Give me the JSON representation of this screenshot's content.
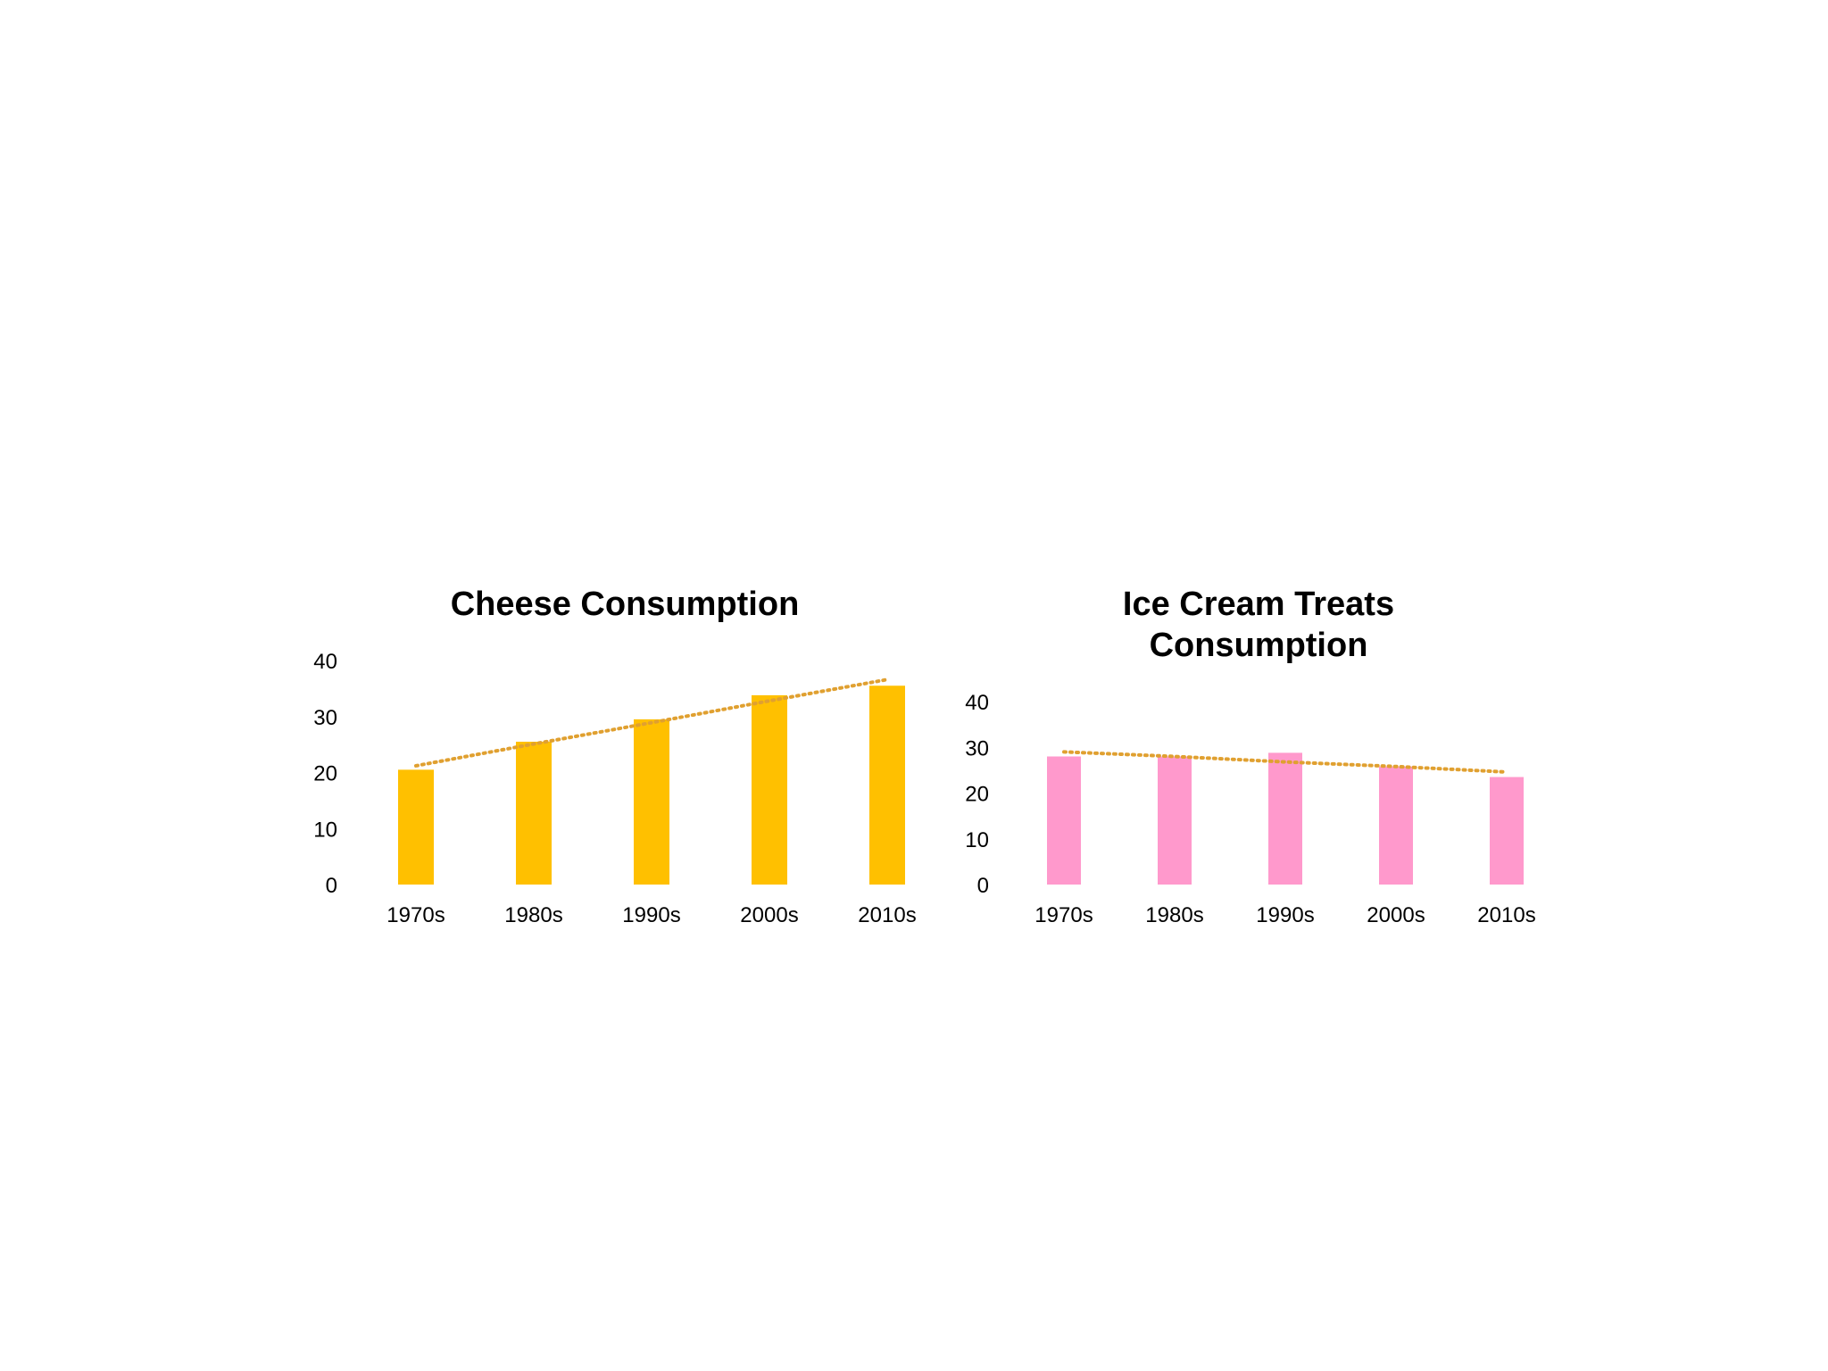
{
  "chart_data": [
    {
      "type": "bar",
      "title": "Cheese Consumption",
      "categories": [
        "1970s",
        "1980s",
        "1990s",
        "2000s",
        "2010s"
      ],
      "values": [
        20.5,
        25.5,
        29.5,
        33.8,
        35.5
      ],
      "trendline": [
        21.2,
        25.1,
        28.9,
        32.8,
        36.6
      ],
      "ylim": [
        0,
        40
      ],
      "yticks": [
        0,
        10,
        20,
        30,
        40
      ],
      "xlabel": "",
      "ylabel": "",
      "grid": false,
      "bar_color": "#FFC000",
      "trend_color": "#E0A030"
    },
    {
      "type": "bar",
      "title": "Ice Cream Treats Consumption",
      "title_lines": [
        "Ice Cream Treats",
        "Consumption"
      ],
      "categories": [
        "1970s",
        "1980s",
        "1990s",
        "2000s",
        "2010s"
      ],
      "values": [
        28.0,
        28.0,
        28.8,
        25.8,
        23.5
      ],
      "trendline": [
        29.0,
        28.0,
        26.8,
        25.8,
        24.6
      ],
      "ylim": [
        0,
        40
      ],
      "yticks": [
        0,
        10,
        20,
        30,
        40
      ],
      "xlabel": "",
      "ylabel": "",
      "grid": false,
      "bar_color": "#FF99CC",
      "trend_color": "#E0A030"
    }
  ]
}
